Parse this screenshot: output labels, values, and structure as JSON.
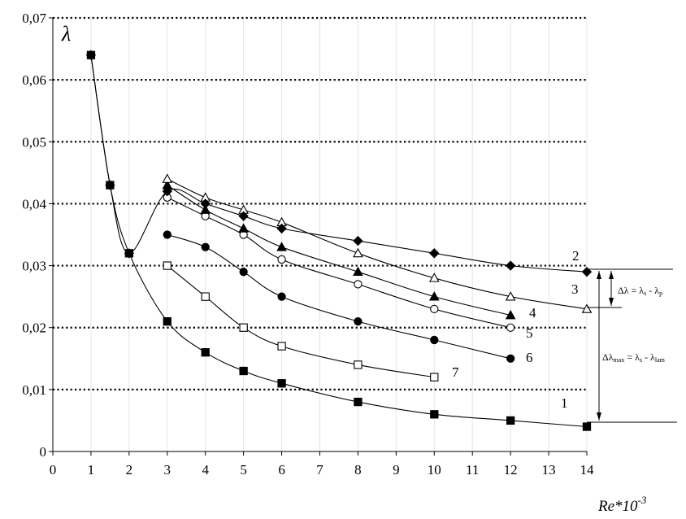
{
  "chart_data": {
    "type": "line",
    "title": "",
    "ylabel": "λ",
    "xlabel_base": "Re*10",
    "xlabel_exp": "-3",
    "xlim": [
      0,
      14
    ],
    "ylim": [
      0,
      0.07
    ],
    "x_ticks": [
      0,
      1,
      2,
      3,
      4,
      5,
      6,
      7,
      8,
      9,
      10,
      11,
      12,
      13,
      14
    ],
    "x_tick_labels": [
      "0",
      "1",
      "2",
      "3",
      "4",
      "5",
      "6",
      "7",
      "8",
      "9",
      "10",
      "11",
      "12",
      "13",
      "14"
    ],
    "y_ticks": [
      0,
      0.01,
      0.02,
      0.03,
      0.04,
      0.05,
      0.06,
      0.07
    ],
    "y_tick_labels": [
      "0",
      "0,01",
      "0,02",
      "0,03",
      "0,04",
      "0,05",
      "0,06",
      "0,07"
    ],
    "grid": {
      "horizontal": "dotted",
      "vertical": "light"
    },
    "series": [
      {
        "name": "1",
        "marker": "square-filled",
        "x": [
          1,
          1.5,
          2,
          3,
          4,
          5,
          6,
          8,
          10,
          12,
          14
        ],
        "y": [
          0.064,
          0.043,
          0.032,
          0.021,
          0.016,
          0.013,
          0.011,
          0.008,
          0.006,
          0.005,
          0.004
        ]
      },
      {
        "name": "2",
        "marker": "diamond-filled",
        "x": [
          1,
          1.5,
          2,
          3,
          4,
          5,
          6,
          8,
          10,
          12,
          14
        ],
        "y": [
          0.064,
          0.043,
          0.032,
          0.042,
          0.04,
          0.038,
          0.036,
          0.034,
          0.032,
          0.03,
          0.029
        ]
      },
      {
        "name": "3",
        "marker": "triangle-open",
        "x": [
          3,
          4,
          5,
          6,
          8,
          10,
          12,
          14
        ],
        "y": [
          0.044,
          0.041,
          0.039,
          0.037,
          0.032,
          0.028,
          0.025,
          0.023
        ]
      },
      {
        "name": "4",
        "marker": "triangle-filled",
        "x": [
          3,
          4,
          5,
          6,
          8,
          10,
          12
        ],
        "y": [
          0.043,
          0.039,
          0.036,
          0.033,
          0.029,
          0.025,
          0.022
        ]
      },
      {
        "name": "5",
        "marker": "circle-open",
        "x": [
          3,
          4,
          5,
          6,
          8,
          10,
          12
        ],
        "y": [
          0.041,
          0.038,
          0.035,
          0.031,
          0.027,
          0.023,
          0.02
        ]
      },
      {
        "name": "6",
        "marker": "circle-filled",
        "x": [
          3,
          4,
          5,
          6,
          8,
          10,
          12
        ],
        "y": [
          0.035,
          0.033,
          0.029,
          0.025,
          0.021,
          0.018,
          0.015
        ]
      },
      {
        "name": "7",
        "marker": "square-open",
        "x": [
          3,
          4,
          5,
          6,
          8,
          10
        ],
        "y": [
          0.03,
          0.025,
          0.02,
          0.017,
          0.014,
          0.012
        ]
      }
    ],
    "annotations": {
      "delta": "Δλ = λ",
      "delta_sub1": "s",
      "delta_mid": " - λ",
      "delta_sub2": "p",
      "delta_max": "Δλ",
      "delta_max_sub": "max",
      "delta_max_mid": " = λ",
      "delta_max_sub1": "s",
      "delta_max_mid2": " - λ",
      "delta_max_sub2": "lam"
    }
  }
}
